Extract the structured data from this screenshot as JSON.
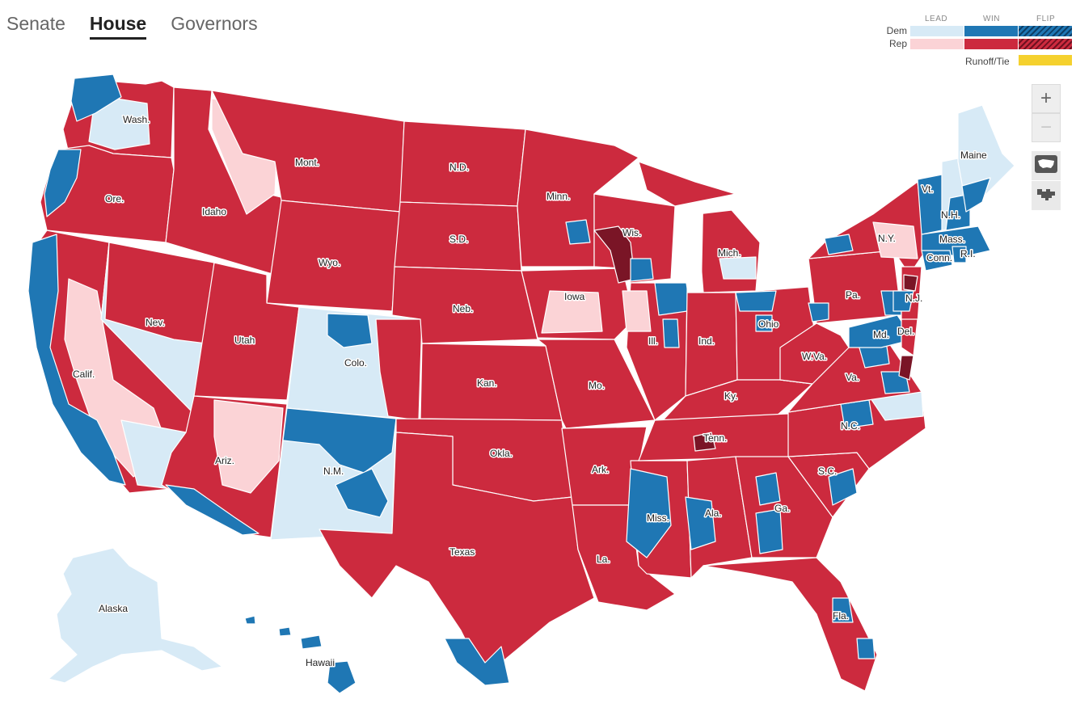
{
  "tabs": [
    {
      "label": "Senate",
      "active": false
    },
    {
      "label": "House",
      "active": true
    },
    {
      "label": "Governors",
      "active": false
    }
  ],
  "legend": {
    "columns": [
      "LEAD",
      "WIN",
      "FLIP"
    ],
    "rows": [
      "Dem",
      "Rep"
    ],
    "runoff_label": "Runoff/Tie"
  },
  "colors": {
    "dem_lead": "#d7eaf6",
    "dem_win": "#1f77b4",
    "dem_flip": "#0d3e66",
    "rep_lead": "#fbd3d6",
    "rep_win": "#cc2a3e",
    "rep_flip": "#6e1020",
    "runoff": "#f5d12e"
  },
  "controls": {
    "zoom_in": "+",
    "zoom_out": "−",
    "view_geographic_icon": "us-map-icon",
    "view_cartogram_icon": "cartogram-icon"
  },
  "states": {
    "wa": "Wash.",
    "or": "Ore.",
    "ca": "Calif.",
    "nv": "Nev.",
    "id": "Idaho",
    "mt": "Mont.",
    "wy": "Wyo.",
    "ut": "Utah",
    "az": "Ariz.",
    "co": "Colo.",
    "nm": "N.M.",
    "nd": "N.D.",
    "sd": "S.D.",
    "ne": "Neb.",
    "ks": "Kan.",
    "ok": "Okla.",
    "tx": "Texas",
    "mn": "Minn.",
    "ia": "Iowa",
    "mo": "Mo.",
    "ar": "Ark.",
    "la": "La.",
    "wi": "Wis.",
    "il": "Ill.",
    "mi": "Mich.",
    "in": "Ind.",
    "oh": "Ohio",
    "ky": "Ky.",
    "tn": "Tenn.",
    "ms": "Miss.",
    "al": "Ala.",
    "ga": "Ga.",
    "fl": "Fla.",
    "sc": "S.C.",
    "nc": "N.C.",
    "va": "Va.",
    "wv": "W.Va.",
    "pa": "Pa.",
    "ny": "N.Y.",
    "vt": "Vt.",
    "nh": "N.H.",
    "me": "Maine",
    "ma": "Mass.",
    "ri": "R.I.",
    "ct": "Conn.",
    "nj": "N.J.",
    "de": "Del.",
    "md": "Md.",
    "ak": "Alaska",
    "hi": "Hawaii"
  }
}
